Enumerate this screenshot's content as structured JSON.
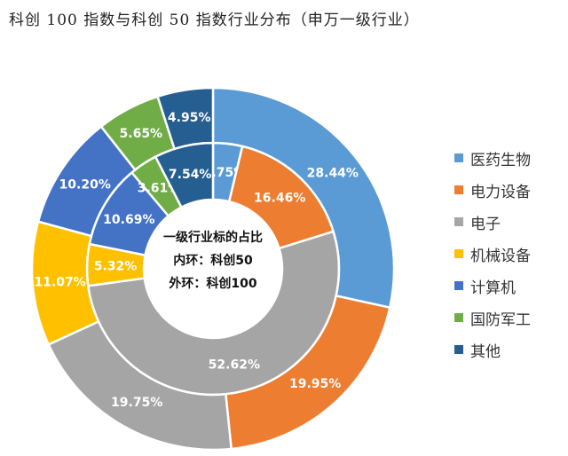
{
  "chart_data": {
    "type": "pie",
    "subtype": "double-donut",
    "title": "科创 100 指数与科创 50 指数行业分布（申万一级行业）",
    "center_text": [
      "一级行业标的占比",
      "内环：科创50",
      "外环：科创100"
    ],
    "categories": [
      "医药生物",
      "电力设备",
      "电子",
      "机械设备",
      "计算机",
      "国防军工",
      "其他"
    ],
    "colors": [
      "#5B9BD5",
      "#ED7D31",
      "#A5A5A5",
      "#FFC000",
      "#4472C4",
      "#70AD47",
      "#255E91"
    ],
    "series": [
      {
        "name": "科创50",
        "ring": "inner",
        "values": [
          3.75,
          16.46,
          52.62,
          5.32,
          10.69,
          3.61,
          7.54
        ]
      },
      {
        "name": "科创100",
        "ring": "outer",
        "values": [
          28.44,
          19.95,
          19.75,
          11.07,
          10.2,
          5.65,
          4.95
        ]
      }
    ],
    "legend_position": "right"
  }
}
